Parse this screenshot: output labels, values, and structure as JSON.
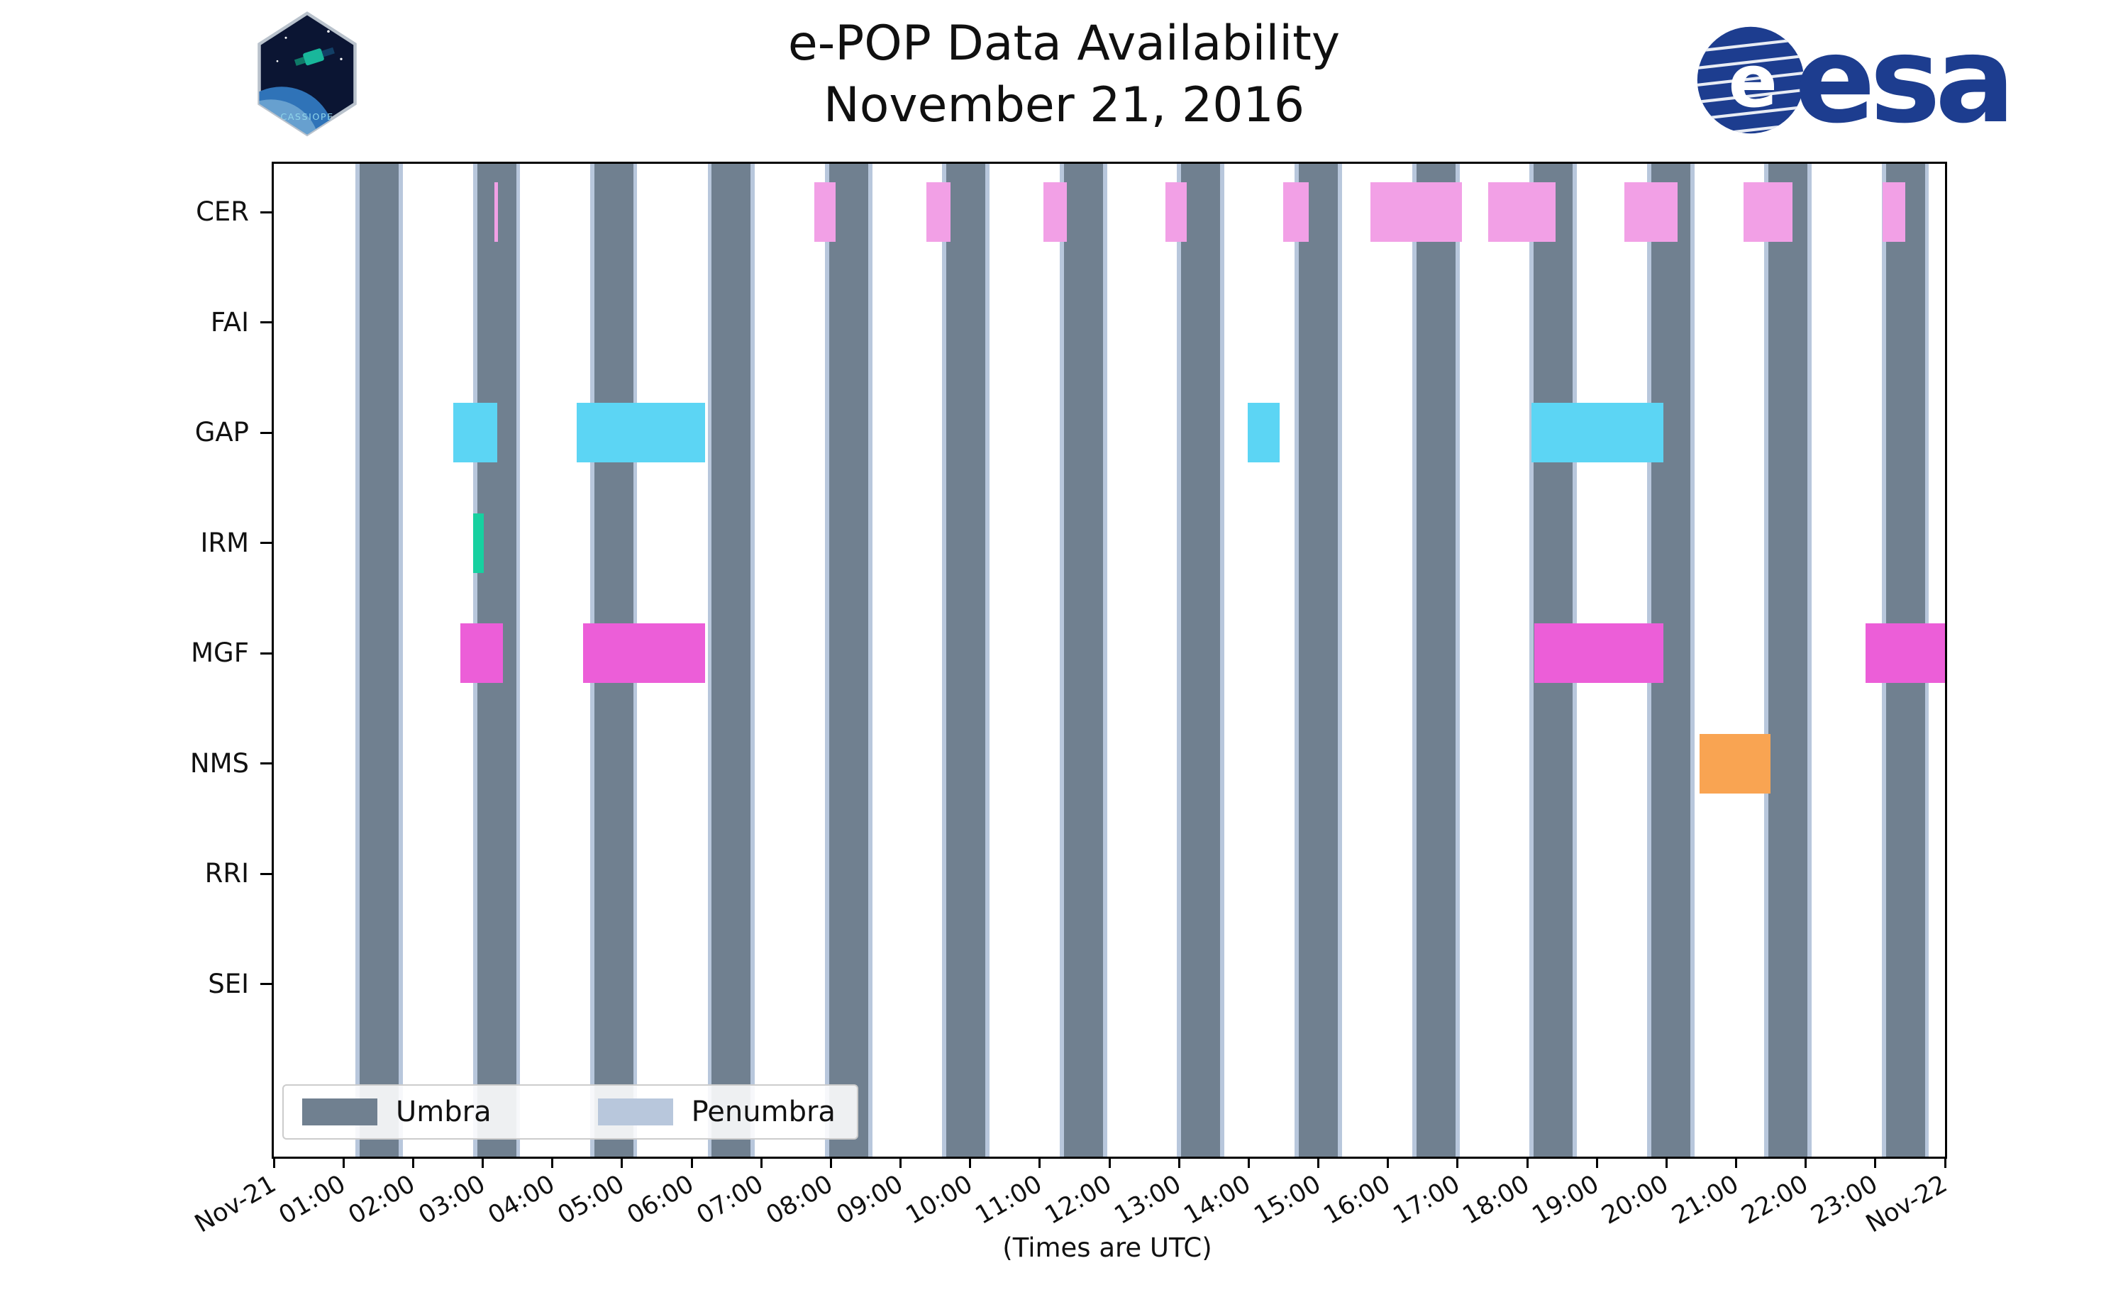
{
  "branding": {
    "cassiope_patch_label": "CASSIOPE",
    "esa_wordmark": "esa",
    "esa_blue": "#1d3d8f"
  },
  "chart_data": {
    "type": "bar",
    "variant": "horizontal interval timeline (broken_barh availability chart)",
    "title": "e-POP Data Availability",
    "subtitle": "November 21, 2016",
    "xlabel": "(Times are UTC)",
    "x_unit": "hours UTC on 2016-11-21",
    "xlim_hours": [
      0,
      24
    ],
    "grid": false,
    "background": "#ffffff",
    "x_tick_labels": [
      "Nov-21",
      "01:00",
      "02:00",
      "03:00",
      "04:00",
      "05:00",
      "06:00",
      "07:00",
      "08:00",
      "09:00",
      "10:00",
      "11:00",
      "12:00",
      "13:00",
      "14:00",
      "15:00",
      "16:00",
      "17:00",
      "18:00",
      "19:00",
      "20:00",
      "21:00",
      "22:00",
      "23:00",
      "Nov-22"
    ],
    "instruments": [
      "CER",
      "FAI",
      "GAP",
      "IRM",
      "MGF",
      "NMS",
      "RRI",
      "SEI"
    ],
    "series": [
      {
        "name": "CER",
        "color": "#f2a0e6",
        "intervals_hours": [
          [
            3.17,
            3.22
          ],
          [
            7.76,
            8.07
          ],
          [
            9.37,
            9.72
          ],
          [
            11.05,
            11.39
          ],
          [
            12.8,
            13.11
          ],
          [
            14.5,
            14.86
          ],
          [
            15.75,
            17.06
          ],
          [
            17.44,
            18.41
          ],
          [
            19.4,
            20.16
          ],
          [
            21.11,
            21.81
          ],
          [
            23.1,
            23.43
          ]
        ]
      },
      {
        "name": "FAI",
        "intervals_hours": []
      },
      {
        "name": "GAP",
        "color": "#5cd5f4",
        "intervals_hours": [
          [
            2.58,
            3.21
          ],
          [
            4.35,
            6.19
          ],
          [
            13.99,
            14.44
          ],
          [
            18.06,
            19.96
          ]
        ]
      },
      {
        "name": "IRM",
        "color": "#17d0a0",
        "intervals_hours": [
          [
            2.86,
            3.02
          ]
        ]
      },
      {
        "name": "MGF",
        "color": "#ec5ed8",
        "intervals_hours": [
          [
            2.68,
            3.29
          ],
          [
            4.44,
            6.19
          ],
          [
            18.1,
            19.96
          ],
          [
            22.86,
            24.0
          ]
        ]
      },
      {
        "name": "NMS",
        "color": "#f9a452",
        "intervals_hours": [
          [
            20.48,
            21.49
          ]
        ]
      },
      {
        "name": "RRI",
        "intervals_hours": []
      },
      {
        "name": "SEI",
        "intervals_hours": []
      }
    ],
    "eclipse_shading": {
      "umbra": {
        "label": "Umbra",
        "color": "#708090",
        "intervals_hours": [
          [
            1.23,
            1.79
          ],
          [
            2.92,
            3.48
          ],
          [
            4.6,
            5.16
          ],
          [
            6.29,
            6.85
          ],
          [
            7.98,
            8.54
          ],
          [
            9.66,
            10.22
          ],
          [
            11.35,
            11.91
          ],
          [
            13.03,
            13.59
          ],
          [
            14.72,
            15.28
          ],
          [
            16.41,
            16.97
          ],
          [
            18.09,
            18.65
          ],
          [
            19.78,
            20.34
          ],
          [
            21.46,
            22.02
          ],
          [
            23.15,
            23.71
          ]
        ]
      },
      "penumbra": {
        "label": "Penumbra",
        "color": "#b8c7dc",
        "edge_hours": 0.06
      }
    },
    "legend": {
      "position": "lower left",
      "entries": [
        {
          "label": "Umbra",
          "color": "#708090"
        },
        {
          "label": "Penumbra",
          "color": "#b8c7dc"
        }
      ]
    }
  }
}
